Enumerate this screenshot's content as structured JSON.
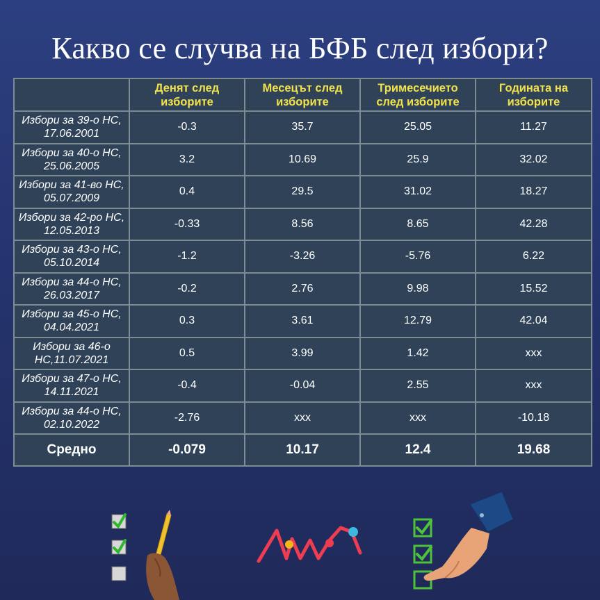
{
  "title": "Какво се случва на БФБ след избори?",
  "colors": {
    "background": "#25346e",
    "cell": "#2f4257",
    "border": "#7d8b93",
    "header_text": "#f2e24a"
  },
  "table": {
    "headers": [
      "",
      "Денят след изборите",
      "Месецът след изборите",
      "Тримесечието след изборите",
      "Годината на изборите"
    ],
    "rows": [
      {
        "label": "Избори за 39-о НС, 17.06.2001",
        "values": [
          "-0.3",
          "35.7",
          "25.05",
          "11.27"
        ]
      },
      {
        "label": "Избори за 40-о НС, 25.06.2005",
        "values": [
          "3.2",
          "10.69",
          "25.9",
          "32.02"
        ]
      },
      {
        "label": "Избори за 41-во НС, 05.07.2009",
        "values": [
          "0.4",
          "29.5",
          "31.02",
          "18.27"
        ]
      },
      {
        "label": "Избори за 42-ро НС, 12.05.2013",
        "values": [
          "-0.33",
          "8.56",
          "8.65",
          "42.28"
        ]
      },
      {
        "label": "Избори за 43-о НС, 05.10.2014",
        "values": [
          "-1.2",
          "-3.26",
          "-5.76",
          "6.22"
        ]
      },
      {
        "label": "Избори за 44-о НС, 26.03.2017",
        "values": [
          "-0.2",
          "2.76",
          "9.98",
          "15.52"
        ]
      },
      {
        "label": "Избори за 45-о НС, 04.04.2021",
        "values": [
          "0.3",
          "3.61",
          "12.79",
          "42.04"
        ]
      },
      {
        "label": "Избори за 46-о НС,11.07.2021",
        "values": [
          "0.5",
          "3.99",
          "1.42",
          "xxx"
        ]
      },
      {
        "label": "Избори за 47-о НС, 14.11.2021",
        "values": [
          "-0.4",
          "-0.04",
          "2.55",
          "xxx"
        ]
      },
      {
        "label": "Избори за 44-о НС, 02.10.2022",
        "values": [
          "-2.76",
          "xxx",
          "xxx",
          "-10.18"
        ]
      }
    ],
    "average": {
      "label": "Средно",
      "values": [
        "-0.079",
        "10.17",
        "12.4",
        "19.68"
      ]
    }
  },
  "decorations": [
    "checklist-icon",
    "pencil-hand-icon",
    "zigzag-chart-icon",
    "pointing-hand-icon"
  ]
}
